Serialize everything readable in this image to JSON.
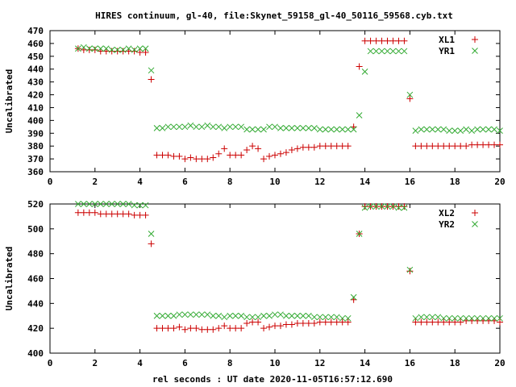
{
  "title": "HIRES continuum, gl-40, file:Skynet_59158_gl-40_50116_59568.cyb.txt",
  "xlabel": "rel seconds : UT date 2020-11-05T16:57:12.690",
  "colors": {
    "series1": "#cc0000",
    "series2": "#33aa33",
    "axis": "#000000"
  },
  "chart_data": [
    {
      "type": "scatter",
      "ylabel": "Uncalibrated",
      "xlim": [
        0,
        20
      ],
      "ylim": [
        360,
        470
      ],
      "xticks": [
        0,
        2,
        4,
        6,
        8,
        10,
        12,
        14,
        16,
        18,
        20
      ],
      "yticks": [
        360,
        370,
        380,
        390,
        400,
        410,
        420,
        430,
        440,
        450,
        460,
        470
      ],
      "grid": false,
      "legend": "top-right",
      "series": [
        {
          "name": "XL1",
          "marker": "plus",
          "x": [
            1.25,
            1.5,
            1.75,
            2.0,
            2.25,
            2.5,
            2.75,
            3.0,
            3.25,
            3.5,
            3.75,
            4.0,
            4.25,
            4.5,
            4.75,
            5.0,
            5.25,
            5.5,
            5.75,
            6.0,
            6.25,
            6.5,
            6.75,
            7.0,
            7.25,
            7.5,
            7.75,
            8.0,
            8.25,
            8.5,
            8.75,
            9.0,
            9.25,
            9.5,
            9.75,
            10.0,
            10.25,
            10.5,
            10.75,
            11.0,
            11.25,
            11.5,
            11.75,
            12.0,
            12.25,
            12.5,
            12.75,
            13.0,
            13.25,
            13.5,
            13.75,
            14.0,
            14.25,
            14.5,
            14.75,
            15.0,
            15.25,
            15.5,
            15.75,
            16.0,
            16.25,
            16.5,
            16.75,
            17.0,
            17.25,
            17.5,
            17.75,
            18.0,
            18.25,
            18.5,
            18.75,
            19.0,
            19.25,
            19.5,
            19.75,
            20.0
          ],
          "y": [
            456,
            455,
            455,
            455,
            454,
            454,
            454,
            454,
            454,
            454,
            454,
            453,
            453,
            432,
            373,
            373,
            373,
            372,
            372,
            370,
            371,
            370,
            370,
            370,
            371,
            374,
            378,
            373,
            373,
            373,
            377,
            380,
            378,
            370,
            372,
            373,
            374,
            375,
            377,
            378,
            379,
            379,
            379,
            380,
            380,
            380,
            380,
            380,
            380,
            395,
            442,
            462,
            462,
            462,
            462,
            462,
            462,
            462,
            462,
            417,
            380,
            380,
            380,
            380,
            380,
            380,
            380,
            380,
            380,
            380,
            381,
            381,
            381,
            381,
            381,
            381
          ],
          "x_hires": true
        },
        {
          "name": "YR1",
          "marker": "cross",
          "x": [
            1.25,
            1.5,
            1.75,
            2.0,
            2.25,
            2.5,
            2.75,
            3.0,
            3.25,
            3.5,
            3.75,
            4.0,
            4.25,
            4.5,
            4.75,
            5.0,
            5.25,
            5.5,
            5.75,
            6.0,
            6.25,
            6.5,
            6.75,
            7.0,
            7.25,
            7.5,
            7.75,
            8.0,
            8.25,
            8.5,
            8.75,
            9.0,
            9.25,
            9.5,
            9.75,
            10.0,
            10.25,
            10.5,
            10.75,
            11.0,
            11.25,
            11.5,
            11.75,
            12.0,
            12.25,
            12.5,
            12.75,
            13.0,
            13.25,
            13.5,
            13.75,
            14.0,
            14.25,
            14.5,
            14.75,
            15.0,
            15.25,
            15.5,
            15.75,
            16.0,
            16.25,
            16.5,
            16.75,
            17.0,
            17.25,
            17.5,
            17.75,
            18.0,
            18.25,
            18.5,
            18.75,
            19.0,
            19.25,
            19.5,
            19.75,
            20.0
          ],
          "y": [
            456,
            457,
            456,
            456,
            456,
            456,
            455,
            455,
            455,
            456,
            455,
            456,
            456,
            439,
            394,
            394,
            395,
            395,
            395,
            395,
            396,
            395,
            395,
            396,
            395,
            395,
            394,
            395,
            395,
            395,
            393,
            393,
            393,
            393,
            395,
            395,
            394,
            394,
            394,
            394,
            394,
            394,
            394,
            393,
            393,
            393,
            393,
            393,
            393,
            393,
            404,
            438,
            454,
            454,
            454,
            454,
            454,
            454,
            454,
            420,
            392,
            393,
            393,
            393,
            393,
            393,
            392,
            392,
            392,
            393,
            392,
            393,
            393,
            393,
            393,
            392
          ]
        }
      ]
    },
    {
      "type": "scatter",
      "ylabel": "Uncalibrated",
      "xlim": [
        0,
        20
      ],
      "ylim": [
        400,
        520
      ],
      "xticks": [
        0,
        2,
        4,
        6,
        8,
        10,
        12,
        14,
        16,
        18,
        20
      ],
      "yticks": [
        400,
        420,
        440,
        460,
        480,
        500,
        520
      ],
      "grid": false,
      "legend": "top-right",
      "series": [
        {
          "name": "XL2",
          "marker": "plus",
          "x": [
            1.25,
            1.5,
            1.75,
            2.0,
            2.25,
            2.5,
            2.75,
            3.0,
            3.25,
            3.5,
            3.75,
            4.0,
            4.25,
            4.5,
            4.75,
            5.0,
            5.25,
            5.5,
            5.75,
            6.0,
            6.25,
            6.5,
            6.75,
            7.0,
            7.25,
            7.5,
            7.75,
            8.0,
            8.25,
            8.5,
            8.75,
            9.0,
            9.25,
            9.5,
            9.75,
            10.0,
            10.25,
            10.5,
            10.75,
            11.0,
            11.25,
            11.5,
            11.75,
            12.0,
            12.25,
            12.5,
            12.75,
            13.0,
            13.25,
            13.5,
            13.75,
            14.0,
            14.25,
            14.5,
            14.75,
            15.0,
            15.25,
            15.5,
            15.75,
            16.0,
            16.25,
            16.5,
            16.75,
            17.0,
            17.25,
            17.5,
            17.75,
            18.0,
            18.25,
            18.5,
            18.75,
            19.0,
            19.25,
            19.5,
            19.75,
            20.0
          ],
          "y": [
            513,
            513,
            513,
            513,
            512,
            512,
            512,
            512,
            512,
            512,
            511,
            511,
            511,
            488,
            420,
            420,
            420,
            420,
            421,
            419,
            420,
            420,
            419,
            419,
            419,
            420,
            422,
            420,
            420,
            420,
            424,
            425,
            425,
            420,
            421,
            422,
            422,
            423,
            423,
            424,
            424,
            424,
            424,
            425,
            425,
            425,
            425,
            425,
            425,
            443,
            496,
            518,
            518,
            518,
            518,
            518,
            518,
            518,
            518,
            466,
            425,
            425,
            425,
            425,
            425,
            425,
            425,
            425,
            425,
            426,
            426,
            426,
            426,
            426,
            426,
            425
          ]
        },
        {
          "name": "YR2",
          "marker": "cross",
          "x": [
            1.25,
            1.5,
            1.75,
            2.0,
            2.25,
            2.5,
            2.75,
            3.0,
            3.25,
            3.5,
            3.75,
            4.0,
            4.25,
            4.5,
            4.75,
            5.0,
            5.25,
            5.5,
            5.75,
            6.0,
            6.25,
            6.5,
            6.75,
            7.0,
            7.25,
            7.5,
            7.75,
            8.0,
            8.25,
            8.5,
            8.75,
            9.0,
            9.25,
            9.5,
            9.75,
            10.0,
            10.25,
            10.5,
            10.75,
            11.0,
            11.25,
            11.5,
            11.75,
            12.0,
            12.25,
            12.5,
            12.75,
            13.0,
            13.25,
            13.5,
            13.75,
            14.0,
            14.25,
            14.5,
            14.75,
            15.0,
            15.25,
            15.5,
            15.75,
            16.0,
            16.25,
            16.5,
            16.75,
            17.0,
            17.25,
            17.5,
            17.75,
            18.0,
            18.25,
            18.5,
            18.75,
            19.0,
            19.25,
            19.5,
            19.75,
            20.0
          ],
          "y": [
            520,
            520,
            520,
            520,
            520,
            520,
            520,
            520,
            520,
            520,
            519,
            519,
            519,
            496,
            430,
            430,
            430,
            430,
            431,
            431,
            431,
            431,
            431,
            431,
            430,
            430,
            429,
            430,
            430,
            430,
            429,
            429,
            429,
            430,
            430,
            431,
            431,
            430,
            430,
            430,
            430,
            430,
            429,
            429,
            429,
            429,
            429,
            428,
            428,
            445,
            496,
            517,
            518,
            518,
            518,
            518,
            518,
            517,
            517,
            467,
            428,
            429,
            429,
            429,
            429,
            428,
            428,
            428,
            428,
            428,
            428,
            428,
            428,
            428,
            428,
            428
          ]
        }
      ]
    }
  ]
}
